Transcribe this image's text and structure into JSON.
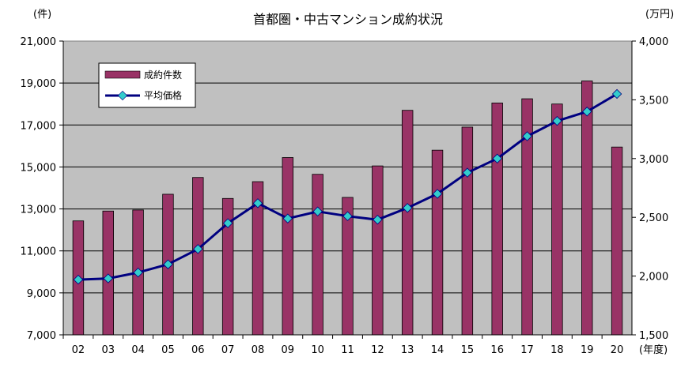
{
  "chart_data": {
    "type": "bar",
    "title": "首都圏・中古マンション成約状況",
    "y_left_label": "(件)",
    "y_right_label": "(万円)",
    "xlabel": "(年度)",
    "categories": [
      "02",
      "03",
      "04",
      "05",
      "06",
      "07",
      "08",
      "09",
      "10",
      "11",
      "12",
      "13",
      "14",
      "15",
      "16",
      "17",
      "18",
      "19",
      "20"
    ],
    "ylim_left": [
      7000,
      21000
    ],
    "ylim_right": [
      1500,
      4000
    ],
    "y_left_ticks": [
      "7,000",
      "9,000",
      "11,000",
      "13,000",
      "15,000",
      "17,000",
      "19,000",
      "21,000"
    ],
    "y_right_ticks": [
      "1,500",
      "2,000",
      "2,500",
      "3,000",
      "3,500",
      "4,000"
    ],
    "grid": true,
    "legend_position": "top-left",
    "series": [
      {
        "name": "成約件数",
        "type": "bar",
        "axis": "left",
        "color": "#993366",
        "values": [
          12430,
          12900,
          12950,
          13700,
          14500,
          13500,
          14300,
          15450,
          14650,
          13550,
          15050,
          17700,
          15800,
          16900,
          18050,
          18250,
          18000,
          19100,
          15950
        ]
      },
      {
        "name": "平均価格",
        "type": "line",
        "axis": "right",
        "color": "#000080",
        "marker_color": "#33CCCC",
        "values": [
          1970,
          1980,
          2030,
          2100,
          2230,
          2450,
          2620,
          2490,
          2550,
          2510,
          2480,
          2580,
          2700,
          2880,
          3000,
          3190,
          3320,
          3400,
          3550
        ]
      }
    ]
  }
}
